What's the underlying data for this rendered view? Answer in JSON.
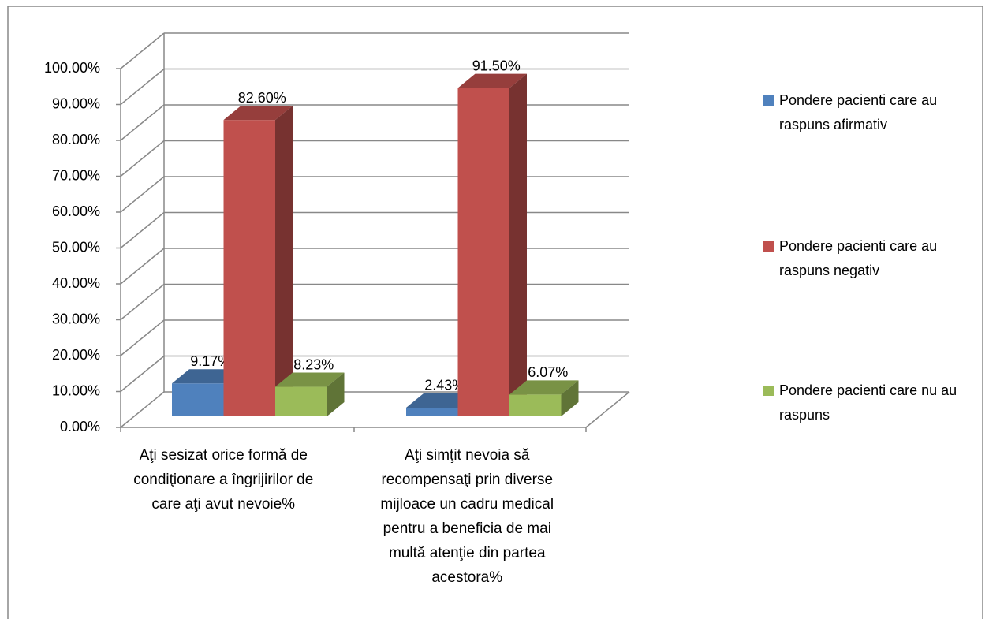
{
  "chart_data": {
    "type": "bar3d",
    "categories": [
      "Aţi sesizat orice formă de condiţionare a îngrijirilor de care aţi avut nevoie%",
      "Aţi simţit nevoia să recompensaţi prin diverse mijloace un cadru medical pentru a beneficia de mai multă atenţie din partea acestora%"
    ],
    "series": [
      {
        "name": "Pondere pacienti care au raspuns afirmativ",
        "color": "#4f81bd",
        "values": [
          9.17,
          2.43
        ],
        "value_labels": [
          "9.17%",
          "2.43%"
        ]
      },
      {
        "name": "Pondere pacienti care au raspuns negativ",
        "color": "#c0504d",
        "values": [
          82.6,
          91.5
        ],
        "value_labels": [
          "82.60%",
          "91.50%"
        ]
      },
      {
        "name": "Pondere pacienti care nu au raspuns",
        "color": "#9bbb59",
        "values": [
          8.23,
          6.07
        ],
        "value_labels": [
          "8.23%",
          "6.07%"
        ]
      }
    ],
    "ylim": [
      0,
      100
    ],
    "yticks": [
      {
        "value": 0,
        "label": "0.00%"
      },
      {
        "value": 10,
        "label": "10.00%"
      },
      {
        "value": 20,
        "label": "20.00%"
      },
      {
        "value": 30,
        "label": "30.00%"
      },
      {
        "value": 40,
        "label": "40.00%"
      },
      {
        "value": 50,
        "label": "50.00%"
      },
      {
        "value": 60,
        "label": "60.00%"
      },
      {
        "value": 70,
        "label": "70.00%"
      },
      {
        "value": 80,
        "label": "80.00%"
      },
      {
        "value": 90,
        "label": "90.00%"
      },
      {
        "value": 100,
        "label": "100.00%"
      }
    ],
    "grid": true,
    "legend": "right"
  }
}
